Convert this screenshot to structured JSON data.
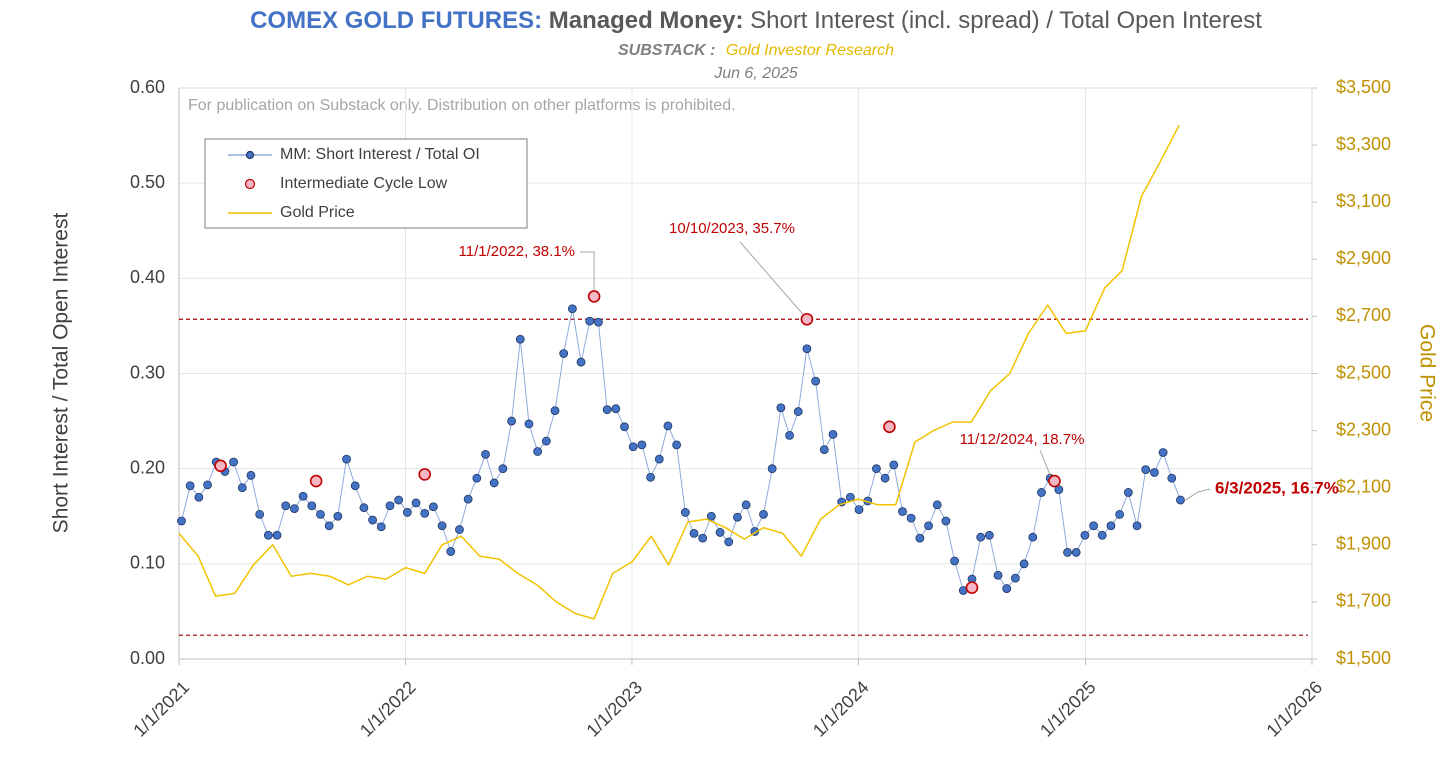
{
  "chart_data": {
    "type": "line",
    "title_parts": [
      "COMEX GOLD FUTURES:",
      "Managed Money:",
      "Short Interest (incl. spread) / Total Open Interest"
    ],
    "source_label": "SUBSTACK :",
    "source": "Gold Investor Research",
    "date": "Jun 6, 2025",
    "note": "For publication on Substack only. Distribution on other platforms is prohibited.",
    "ylabel": "Short Interest / Total Open Interest",
    "y2label": "Gold Price",
    "xlim": [
      "1/1/2021",
      "1/1/2026"
    ],
    "xticks": [
      "1/1/2021",
      "1/1/2022",
      "1/1/2023",
      "1/1/2024",
      "1/1/2025",
      "1/1/2026"
    ],
    "ylim": [
      0,
      0.6
    ],
    "yticks": [
      {
        "value": 0,
        "label": "0.00"
      },
      {
        "value": 0.1,
        "label": "0.10"
      },
      {
        "value": 0.2,
        "label": "0.20"
      },
      {
        "value": 0.3,
        "label": "0.30"
      },
      {
        "value": 0.4,
        "label": "0.40"
      },
      {
        "value": 0.5,
        "label": "0.50"
      },
      {
        "value": 0.6,
        "label": "0.60"
      }
    ],
    "y2lim": [
      1500,
      3500
    ],
    "y2ticks": [
      {
        "value": 1500,
        "label": "$1,500"
      },
      {
        "value": 1700,
        "label": "$1,700"
      },
      {
        "value": 1900,
        "label": "$1,900"
      },
      {
        "value": 2100,
        "label": "$2,100"
      },
      {
        "value": 2300,
        "label": "$2,300"
      },
      {
        "value": 2500,
        "label": "$2,500"
      },
      {
        "value": 2700,
        "label": "$2,700"
      },
      {
        "value": 2900,
        "label": "$2,900"
      },
      {
        "value": 3100,
        "label": "$3,100"
      },
      {
        "value": 3300,
        "label": "$3,300"
      },
      {
        "value": 3500,
        "label": "$3,500"
      }
    ],
    "grid": true,
    "legend": "upper left",
    "reference_lines": [
      0.357,
      0.025
    ],
    "series": [
      {
        "name": "MM: Short Interest / Total OI",
        "color": "#4472c4",
        "line_color": "#8faadc",
        "marker": "circle",
        "x": [
          "1/5/2021",
          "1/19/2021",
          "2/2/2021",
          "2/16/2021",
          "3/2/2021",
          "3/16/2021",
          "3/30/2021",
          "4/13/2021",
          "4/27/2021",
          "5/11/2021",
          "5/25/2021",
          "6/8/2021",
          "6/22/2021",
          "7/6/2021",
          "7/20/2021",
          "8/3/2021",
          "8/17/2021",
          "8/31/2021",
          "9/14/2021",
          "9/28/2021",
          "10/12/2021",
          "10/26/2021",
          "11/9/2021",
          "11/23/2021",
          "12/7/2021",
          "12/21/2021",
          "1/4/2022",
          "1/18/2022",
          "2/1/2022",
          "2/15/2022",
          "3/1/2022",
          "3/15/2022",
          "3/29/2022",
          "4/12/2022",
          "4/26/2022",
          "5/10/2022",
          "5/24/2022",
          "6/7/2022",
          "6/21/2022",
          "7/5/2022",
          "7/19/2022",
          "8/2/2022",
          "8/16/2022",
          "8/30/2022",
          "9/13/2022",
          "9/27/2022",
          "10/11/2022",
          "10/25/2022",
          "11/8/2022",
          "11/22/2022",
          "12/6/2022",
          "12/20/2022",
          "1/3/2023",
          "1/17/2023",
          "1/31/2023",
          "2/14/2023",
          "2/28/2023",
          "3/14/2023",
          "3/28/2023",
          "4/11/2023",
          "4/25/2023",
          "5/9/2023",
          "5/23/2023",
          "6/6/2023",
          "6/20/2023",
          "7/4/2023",
          "7/18/2023",
          "8/1/2023",
          "8/15/2023",
          "8/29/2023",
          "9/12/2023",
          "9/26/2023",
          "10/10/2023",
          "10/24/2023",
          "11/7/2023",
          "11/21/2023",
          "12/5/2023",
          "12/19/2023",
          "1/2/2024",
          "1/16/2024",
          "1/30/2024",
          "2/13/2024",
          "2/27/2024",
          "3/12/2024",
          "3/26/2024",
          "4/9/2024",
          "4/23/2024",
          "5/7/2024",
          "5/21/2024",
          "6/4/2024",
          "6/18/2024",
          "7/2/2024",
          "7/16/2024",
          "7/30/2024",
          "8/13/2024",
          "8/27/2024",
          "9/10/2024",
          "9/24/2024",
          "10/8/2024",
          "10/22/2024",
          "11/5/2024",
          "11/19/2024",
          "12/3/2024",
          "12/17/2024",
          "12/31/2024",
          "1/14/2025",
          "1/28/2025",
          "2/11/2025",
          "2/25/2025",
          "3/11/2025",
          "3/25/2025",
          "4/8/2025",
          "4/22/2025",
          "5/6/2025",
          "5/20/2025",
          "6/3/2025"
        ],
        "values": [
          0.145,
          0.182,
          0.17,
          0.183,
          0.207,
          0.197,
          0.207,
          0.18,
          0.193,
          0.152,
          0.13,
          0.13,
          0.161,
          0.158,
          0.171,
          0.161,
          0.152,
          0.14,
          0.15,
          0.21,
          0.182,
          0.159,
          0.146,
          0.139,
          0.161,
          0.167,
          0.154,
          0.164,
          0.153,
          0.16,
          0.14,
          0.113,
          0.136,
          0.168,
          0.19,
          0.215,
          0.185,
          0.2,
          0.25,
          0.336,
          0.247,
          0.218,
          0.229,
          0.261,
          0.321,
          0.368,
          0.312,
          0.355,
          0.354,
          0.262,
          0.263,
          0.244,
          0.223,
          0.225,
          0.191,
          0.21,
          0.245,
          0.225,
          0.154,
          0.132,
          0.127,
          0.15,
          0.133,
          0.123,
          0.149,
          0.162,
          0.134,
          0.152,
          0.2,
          0.264,
          0.235,
          0.26,
          0.326,
          0.292,
          0.22,
          0.236,
          0.165,
          0.17,
          0.157,
          0.166,
          0.2,
          0.19,
          0.204,
          0.155,
          0.148,
          0.127,
          0.14,
          0.162,
          0.145,
          0.103,
          0.072,
          0.084,
          0.128,
          0.13,
          0.088,
          0.074,
          0.085,
          0.1,
          0.128,
          0.175,
          0.19,
          0.178,
          0.112,
          0.112,
          0.13,
          0.14,
          0.13,
          0.14,
          0.152,
          0.175,
          0.14,
          0.199,
          0.196,
          0.217,
          0.19,
          0.167
        ]
      },
      {
        "name": "Intermediate Cycle Low",
        "color": "#f4b6c2",
        "edge_color": "#c00000",
        "marker": "circle",
        "line": false,
        "x": [
          "3/9/2021",
          "8/10/2021",
          "2/1/2022",
          "11/1/2022",
          "10/10/2023",
          "2/20/2024",
          "7/2/2024",
          "11/12/2024"
        ],
        "values": [
          0.203,
          0.187,
          0.194,
          0.381,
          0.357,
          0.244,
          0.075,
          0.187
        ]
      },
      {
        "name": "Gold Price",
        "color": "#f2c200",
        "axis": "y2",
        "x": [
          "1/1/2021",
          "2/1/2021",
          "3/1/2021",
          "4/1/2021",
          "5/1/2021",
          "6/1/2021",
          "7/1/2021",
          "8/1/2021",
          "9/1/2021",
          "10/1/2021",
          "11/1/2021",
          "12/1/2021",
          "1/1/2022",
          "2/1/2022",
          "3/1/2022",
          "4/1/2022",
          "5/1/2022",
          "6/1/2022",
          "7/1/2022",
          "8/1/2022",
          "9/1/2022",
          "10/1/2022",
          "11/1/2022",
          "12/1/2022",
          "1/1/2023",
          "2/1/2023",
          "3/1/2023",
          "4/1/2023",
          "5/1/2023",
          "6/1/2023",
          "7/1/2023",
          "8/1/2023",
          "9/1/2023",
          "10/1/2023",
          "11/1/2023",
          "12/1/2023",
          "1/1/2024",
          "2/1/2024",
          "3/1/2024",
          "4/1/2024",
          "5/1/2024",
          "6/1/2024",
          "7/1/2024",
          "8/1/2024",
          "9/1/2024",
          "10/1/2024",
          "11/1/2024",
          "12/1/2024",
          "1/1/2025",
          "2/1/2025",
          "3/1/2025",
          "4/1/2025",
          "5/1/2025",
          "6/1/2025"
        ],
        "values": [
          1940,
          1860,
          1720,
          1730,
          1830,
          1900,
          1790,
          1800,
          1790,
          1760,
          1790,
          1780,
          1820,
          1800,
          1900,
          1930,
          1860,
          1850,
          1800,
          1760,
          1700,
          1660,
          1640,
          1800,
          1840,
          1930,
          1830,
          1980,
          1990,
          1960,
          1920,
          1960,
          1940,
          1860,
          1990,
          2040,
          2060,
          2040,
          2040,
          2260,
          2300,
          2330,
          2330,
          2440,
          2500,
          2640,
          2740,
          2640,
          2650,
          2800,
          2860,
          3120,
          3240,
          3370
        ]
      }
    ],
    "annotations": [
      {
        "x": "11/1/2022",
        "y": 0.381,
        "text": "11/1/2022, 38.1%"
      },
      {
        "x": "10/10/2023",
        "y": 0.357,
        "text": "10/10/2023, 35.7%"
      },
      {
        "x": "11/12/2024",
        "y": 0.187,
        "text": "11/12/2024, 18.7%"
      },
      {
        "x": "6/3/2025",
        "y": 0.167,
        "text": "6/3/2025, 16.7%"
      }
    ]
  }
}
